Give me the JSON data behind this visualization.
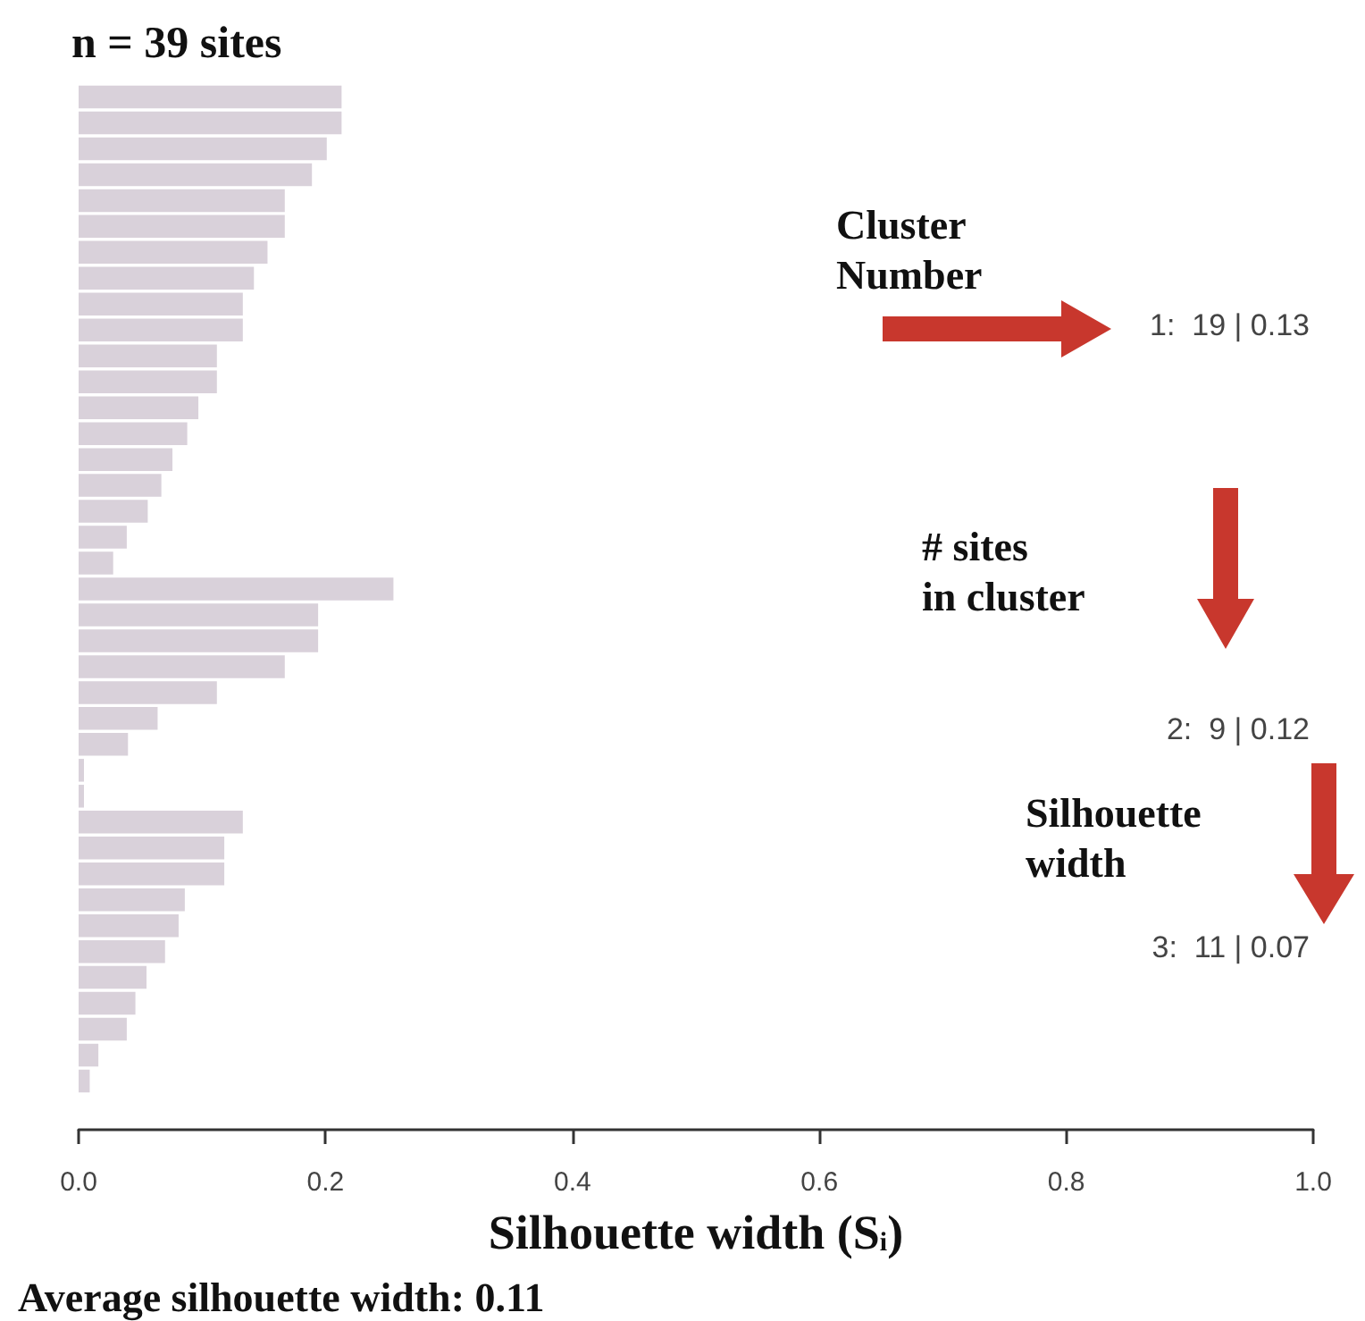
{
  "chart_data": {
    "type": "bar",
    "orientation": "horizontal",
    "title": "n = 39 sites",
    "xlabel": "Silhouette width (S$_{i}$)",
    "categories": [
      null,
      null,
      null,
      null,
      null,
      null,
      null,
      null,
      null,
      null,
      null,
      null,
      null,
      null,
      null,
      null,
      null,
      null,
      null,
      null,
      null,
      null,
      null,
      null,
      null,
      null,
      null,
      null,
      null,
      null,
      null,
      null,
      null,
      null,
      null,
      null,
      null,
      null,
      null
    ],
    "values": [
      0.213,
      0.213,
      0.201,
      0.189,
      0.167,
      0.167,
      0.153,
      0.142,
      0.133,
      0.133,
      0.112,
      0.112,
      0.097,
      0.088,
      0.076,
      0.067,
      0.056,
      0.039,
      0.028,
      0.255,
      0.194,
      0.194,
      0.167,
      0.112,
      0.064,
      0.04,
      0.004,
      0.002,
      0.133,
      0.118,
      0.118,
      0.086,
      0.081,
      0.07,
      0.055,
      0.046,
      0.039,
      0.016,
      0.009
    ],
    "color": "#d9d1da",
    "xlim": [
      0,
      1
    ],
    "xticks": [
      {
        "value": 0,
        "label": "0.0"
      },
      {
        "value": 0.2,
        "label": "0.2"
      },
      {
        "value": 0.4,
        "label": "0.4"
      },
      {
        "value": 0.6,
        "label": "0.6"
      },
      {
        "value": 0.8,
        "label": "0.8"
      },
      {
        "value": 1,
        "label": "1.0"
      }
    ],
    "tick_labels": "x",
    "grid": false,
    "annotations": [
      "Cluster\nNumber",
      "1:  19 | 0.13",
      "# sites\nin cluster",
      "2:  9 | 0.12",
      "Silhouette\nwidth",
      "3:  11 | 0.07",
      "Average silhouette width: 0.11"
    ]
  }
}
